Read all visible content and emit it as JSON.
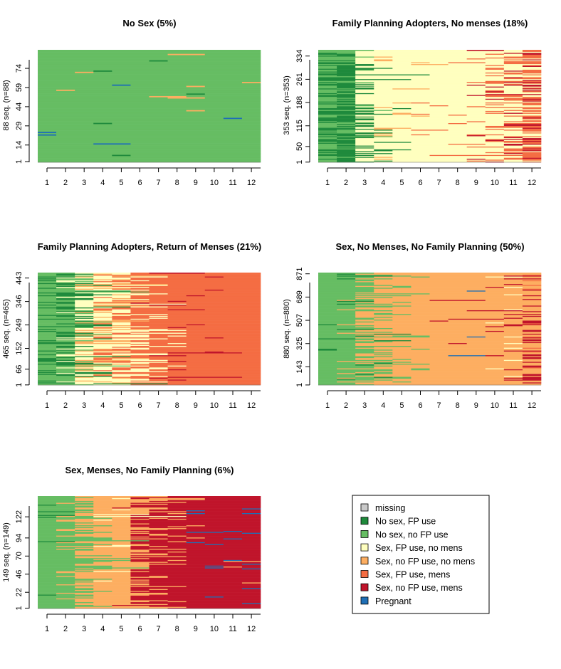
{
  "colors": {
    "missing": "#c9c9c9",
    "nosex_fp": "#1f8a3c",
    "nosex_nofp": "#66bd63",
    "sex_fp_nomens": "#ffffbf",
    "sex_nofp_nomens": "#fdae61",
    "sex_fp_mens": "#f46d43",
    "sex_nofp_mens": "#c0142b",
    "pregnant": "#1f6fb5"
  },
  "legend": [
    {
      "key": "missing",
      "label": "missing"
    },
    {
      "key": "nosex_fp",
      "label": "No sex, FP use"
    },
    {
      "key": "nosex_nofp",
      "label": "No sex, no FP use"
    },
    {
      "key": "sex_fp_nomens",
      "label": "Sex, FP use, no mens"
    },
    {
      "key": "sex_nofp_nomens",
      "label": "Sex, no FP use, no mens"
    },
    {
      "key": "sex_fp_mens",
      "label": "Sex, FP use, mens"
    },
    {
      "key": "sex_nofp_mens",
      "label": "Sex, no FP use, mens"
    },
    {
      "key": "pregnant",
      "label": "Pregnant"
    }
  ],
  "chart_data": [
    {
      "type": "heatmap",
      "title": "No Sex (5%)",
      "ylabel": "88 seq. (n=88)",
      "n": 88,
      "months": [
        "1",
        "2",
        "3",
        "4",
        "5",
        "6",
        "7",
        "8",
        "9",
        "10",
        "11",
        "12"
      ],
      "yticks": [
        "1",
        "14",
        "29",
        "44",
        "59",
        "74"
      ],
      "seed": 11,
      "base": [
        [
          "nosex_nofp",
          1.0
        ]
      ],
      "noise": {
        "rate": 0.03,
        "states": [
          "nosex_fp",
          "pregnant",
          "sex_nofp_nomens"
        ]
      }
    },
    {
      "type": "heatmap",
      "title": "Family Planning Adopters, No menses (18%)",
      "ylabel": "353 seq. (n=353)",
      "n": 353,
      "months": [
        "1",
        "2",
        "3",
        "4",
        "5",
        "6",
        "7",
        "8",
        "9",
        "10",
        "11",
        "12"
      ],
      "yticks": [
        "1",
        "50",
        "115",
        "188",
        "261",
        "334"
      ],
      "seed": 23,
      "profile": [
        [
          [
            "nosex_nofp",
            0.55
          ],
          [
            "nosex_fp",
            0.45
          ]
        ],
        [
          [
            "nosex_fp",
            0.75
          ],
          [
            "nosex_nofp",
            0.25
          ]
        ],
        [
          [
            "sex_fp_nomens",
            0.75
          ],
          [
            "nosex_fp",
            0.15
          ],
          [
            "nosex_nofp",
            0.1
          ]
        ],
        [
          [
            "sex_fp_nomens",
            0.85
          ],
          [
            "nosex_fp",
            0.08
          ],
          [
            "sex_nofp_nomens",
            0.07
          ]
        ],
        [
          [
            "sex_fp_nomens",
            0.9
          ],
          [
            "sex_nofp_nomens",
            0.06
          ],
          [
            "nosex_fp",
            0.04
          ]
        ],
        [
          [
            "sex_fp_nomens",
            0.92
          ],
          [
            "sex_nofp_nomens",
            0.05
          ],
          [
            "sex_fp_mens",
            0.03
          ]
        ],
        [
          [
            "sex_fp_nomens",
            0.96
          ],
          [
            "sex_fp_mens",
            0.04
          ]
        ],
        [
          [
            "sex_fp_nomens",
            0.95
          ],
          [
            "sex_fp_mens",
            0.05
          ]
        ],
        [
          [
            "sex_fp_nomens",
            0.82
          ],
          [
            "sex_fp_mens",
            0.13
          ],
          [
            "sex_nofp_mens",
            0.05
          ]
        ],
        [
          [
            "sex_fp_nomens",
            0.6
          ],
          [
            "sex_fp_mens",
            0.3
          ],
          [
            "sex_nofp_mens",
            0.1
          ]
        ],
        [
          [
            "sex_fp_nomens",
            0.5
          ],
          [
            "sex_fp_mens",
            0.38
          ],
          [
            "sex_nofp_mens",
            0.12
          ]
        ],
        [
          [
            "sex_fp_mens",
            0.55
          ],
          [
            "sex_fp_nomens",
            0.25
          ],
          [
            "sex_nofp_mens",
            0.2
          ]
        ]
      ]
    },
    {
      "type": "heatmap",
      "title": "Family Planning Adopters, Return of Menses (21%)",
      "ylabel": "465 seq. (n=465)",
      "n": 465,
      "months": [
        "1",
        "2",
        "3",
        "4",
        "5",
        "6",
        "7",
        "8",
        "9",
        "10",
        "11",
        "12"
      ],
      "yticks": [
        "1",
        "66",
        "152",
        "249",
        "346",
        "443"
      ],
      "seed": 37,
      "profile": [
        [
          [
            "nosex_nofp",
            0.75
          ],
          [
            "nosex_fp",
            0.25
          ]
        ],
        [
          [
            "nosex_fp",
            0.4
          ],
          [
            "nosex_nofp",
            0.4
          ],
          [
            "sex_fp_nomens",
            0.2
          ]
        ],
        [
          [
            "sex_fp_nomens",
            0.55
          ],
          [
            "nosex_fp",
            0.2
          ],
          [
            "sex_nofp_nomens",
            0.15
          ],
          [
            "nosex_nofp",
            0.1
          ]
        ],
        [
          [
            "sex_fp_nomens",
            0.5
          ],
          [
            "sex_nofp_nomens",
            0.25
          ],
          [
            "sex_fp_mens",
            0.15
          ],
          [
            "nosex_fp",
            0.1
          ]
        ],
        [
          [
            "sex_fp_nomens",
            0.4
          ],
          [
            "sex_fp_mens",
            0.35
          ],
          [
            "sex_nofp_nomens",
            0.25
          ]
        ],
        [
          [
            "sex_fp_mens",
            0.6
          ],
          [
            "sex_fp_nomens",
            0.3
          ],
          [
            "sex_nofp_mens",
            0.1
          ]
        ],
        [
          [
            "sex_fp_mens",
            0.8
          ],
          [
            "sex_fp_nomens",
            0.12
          ],
          [
            "sex_nofp_mens",
            0.08
          ]
        ],
        [
          [
            "sex_fp_mens",
            0.9
          ],
          [
            "sex_fp_nomens",
            0.05
          ],
          [
            "sex_nofp_mens",
            0.05
          ]
        ],
        [
          [
            "sex_fp_mens",
            0.97
          ],
          [
            "sex_nofp_mens",
            0.03
          ]
        ],
        [
          [
            "sex_fp_mens",
            0.98
          ],
          [
            "sex_nofp_mens",
            0.02
          ]
        ],
        [
          [
            "sex_fp_mens",
            0.98
          ],
          [
            "pregnant",
            0.01
          ],
          [
            "sex_nofp_mens",
            0.01
          ]
        ],
        [
          [
            "sex_fp_mens",
            0.97
          ],
          [
            "pregnant",
            0.02
          ],
          [
            "sex_nofp_mens",
            0.01
          ]
        ]
      ]
    },
    {
      "type": "heatmap",
      "title": "Sex, No Menses, No Family Planning (50%)",
      "ylabel": "880 seq. (n=880)",
      "n": 880,
      "months": [
        "1",
        "2",
        "3",
        "4",
        "5",
        "6",
        "7",
        "8",
        "9",
        "10",
        "11",
        "12"
      ],
      "yticks": [
        "1",
        "143",
        "325",
        "507",
        "689",
        "871"
      ],
      "seed": 53,
      "profile": [
        [
          [
            "nosex_nofp",
            0.97
          ],
          [
            "nosex_fp",
            0.03
          ]
        ],
        [
          [
            "nosex_nofp",
            0.85
          ],
          [
            "nosex_fp",
            0.05
          ],
          [
            "sex_nofp_nomens",
            0.1
          ]
        ],
        [
          [
            "sex_nofp_nomens",
            0.55
          ],
          [
            "nosex_nofp",
            0.4
          ],
          [
            "nosex_fp",
            0.05
          ]
        ],
        [
          [
            "sex_nofp_nomens",
            0.75
          ],
          [
            "nosex_nofp",
            0.22
          ],
          [
            "nosex_fp",
            0.03
          ]
        ],
        [
          [
            "sex_nofp_nomens",
            0.9
          ],
          [
            "nosex_nofp",
            0.1
          ]
        ],
        [
          [
            "sex_nofp_nomens",
            0.95
          ],
          [
            "nosex_nofp",
            0.05
          ]
        ],
        [
          [
            "sex_nofp_nomens",
            0.97
          ],
          [
            "sex_nofp_mens",
            0.03
          ]
        ],
        [
          [
            "sex_nofp_nomens",
            0.95
          ],
          [
            "sex_nofp_mens",
            0.03
          ],
          [
            "pregnant",
            0.02
          ]
        ],
        [
          [
            "sex_nofp_nomens",
            0.93
          ],
          [
            "sex_nofp_mens",
            0.04
          ],
          [
            "pregnant",
            0.03
          ]
        ],
        [
          [
            "sex_nofp_nomens",
            0.9
          ],
          [
            "sex_nofp_mens",
            0.06
          ],
          [
            "sex_fp_nomens",
            0.04
          ]
        ],
        [
          [
            "sex_nofp_nomens",
            0.85
          ],
          [
            "sex_nofp_mens",
            0.1
          ],
          [
            "sex_fp_nomens",
            0.05
          ]
        ],
        [
          [
            "sex_nofp_nomens",
            0.55
          ],
          [
            "sex_nofp_mens",
            0.35
          ],
          [
            "sex_fp_mens",
            0.1
          ]
        ]
      ]
    },
    {
      "type": "heatmap",
      "title": "Sex, Menses, No Family Planning (6%)",
      "ylabel": "149 seq. (n=149)",
      "n": 149,
      "months": [
        "1",
        "2",
        "3",
        "4",
        "5",
        "6",
        "7",
        "8",
        "9",
        "10",
        "11",
        "12"
      ],
      "yticks": [
        "1",
        "22",
        "46",
        "70",
        "94",
        "122"
      ],
      "seed": 71,
      "profile": [
        [
          [
            "nosex_nofp",
            0.95
          ],
          [
            "nosex_fp",
            0.05
          ]
        ],
        [
          [
            "nosex_nofp",
            0.8
          ],
          [
            "sex_nofp_nomens",
            0.2
          ]
        ],
        [
          [
            "sex_nofp_nomens",
            0.65
          ],
          [
            "nosex_nofp",
            0.35
          ]
        ],
        [
          [
            "sex_nofp_nomens",
            0.8
          ],
          [
            "nosex_nofp",
            0.12
          ],
          [
            "sex_fp_nomens",
            0.08
          ]
        ],
        [
          [
            "sex_nofp_nomens",
            0.88
          ],
          [
            "sex_fp_nomens",
            0.07
          ],
          [
            "sex_nofp_mens",
            0.05
          ]
        ],
        [
          [
            "sex_nofp_mens",
            0.65
          ],
          [
            "sex_nofp_nomens",
            0.35
          ]
        ],
        [
          [
            "sex_nofp_mens",
            0.82
          ],
          [
            "sex_nofp_nomens",
            0.18
          ]
        ],
        [
          [
            "sex_nofp_mens",
            0.9
          ],
          [
            "sex_nofp_nomens",
            0.1
          ]
        ],
        [
          [
            "sex_nofp_mens",
            0.96
          ],
          [
            "pregnant",
            0.02
          ],
          [
            "sex_nofp_nomens",
            0.02
          ]
        ],
        [
          [
            "sex_nofp_mens",
            0.96
          ],
          [
            "pregnant",
            0.03
          ],
          [
            "sex_nofp_nomens",
            0.01
          ]
        ],
        [
          [
            "sex_nofp_mens",
            0.95
          ],
          [
            "pregnant",
            0.04
          ],
          [
            "sex_nofp_nomens",
            0.01
          ]
        ],
        [
          [
            "sex_nofp_mens",
            0.95
          ],
          [
            "pregnant",
            0.04
          ],
          [
            "sex_nofp_nomens",
            0.01
          ]
        ]
      ]
    }
  ]
}
